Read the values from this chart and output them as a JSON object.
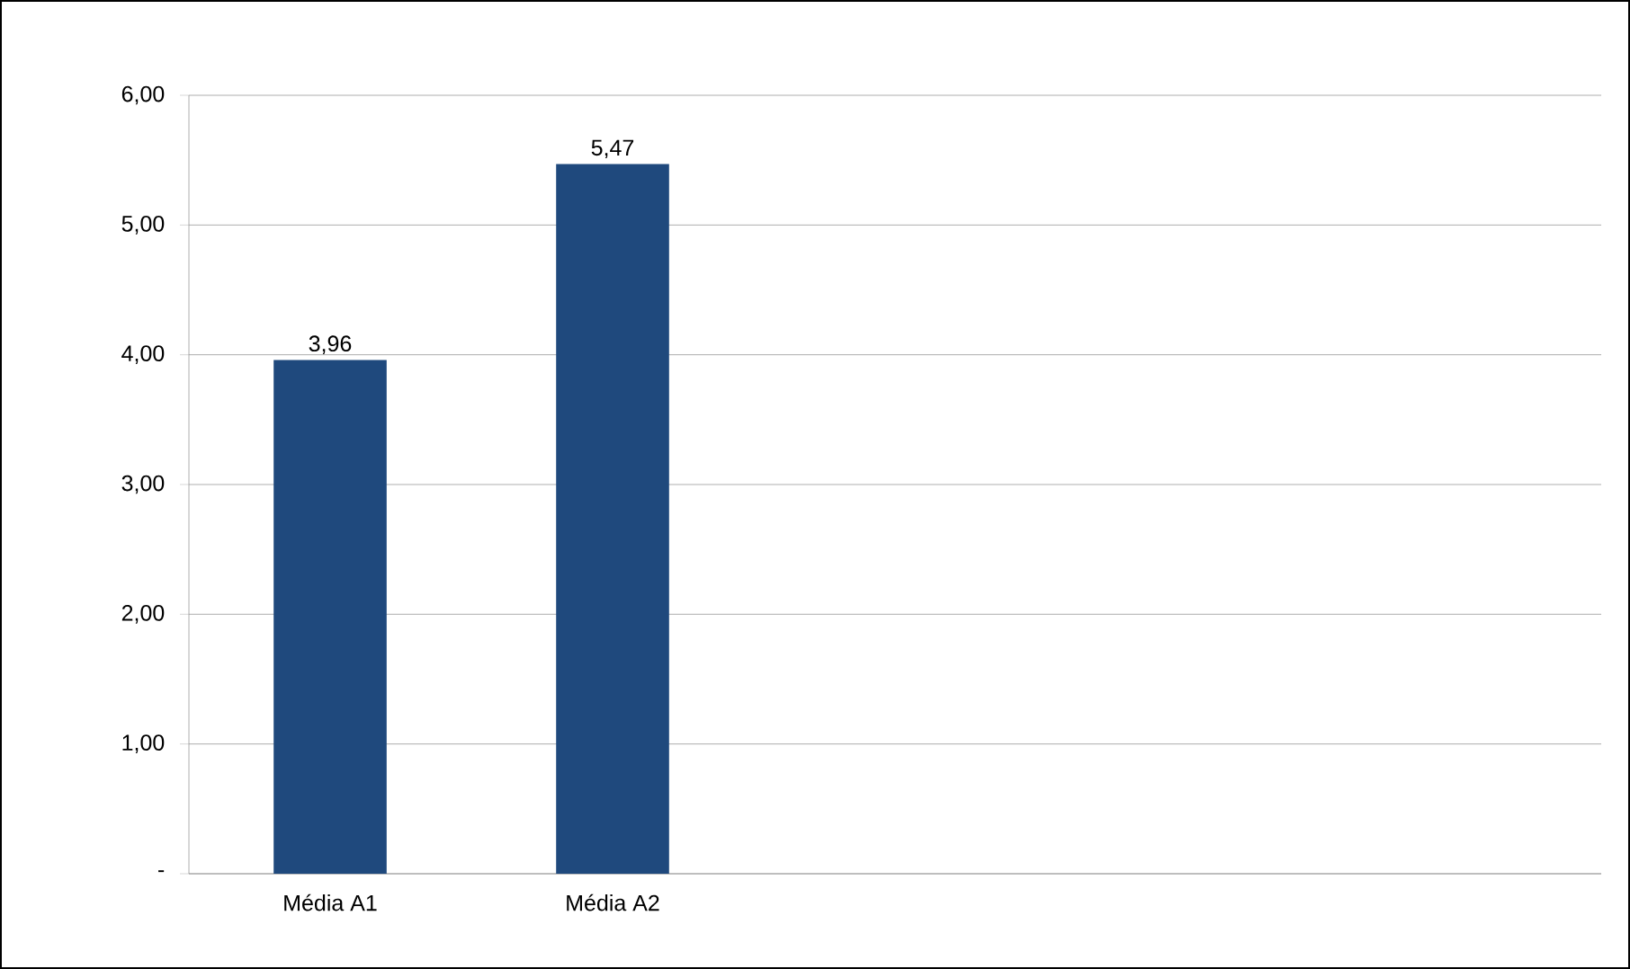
{
  "chart_data": {
    "type": "bar",
    "categories": [
      "Média A1",
      "Média A2",
      null,
      null,
      null
    ],
    "values": [
      3.96,
      5.47,
      null,
      null,
      null
    ],
    "value_labels": [
      "3,96",
      "5,47",
      null,
      null,
      null
    ],
    "color": "#1f497d",
    "ylim": [
      0,
      6
    ],
    "yticks": [
      {
        "value": 0,
        "label": "-"
      },
      {
        "value": 1,
        "label": "1,00"
      },
      {
        "value": 2,
        "label": "2,00"
      },
      {
        "value": 3,
        "label": "3,00"
      },
      {
        "value": 4,
        "label": "4,00"
      },
      {
        "value": 5,
        "label": "5,00"
      },
      {
        "value": 6,
        "label": "6,00"
      }
    ],
    "grid": "y"
  }
}
